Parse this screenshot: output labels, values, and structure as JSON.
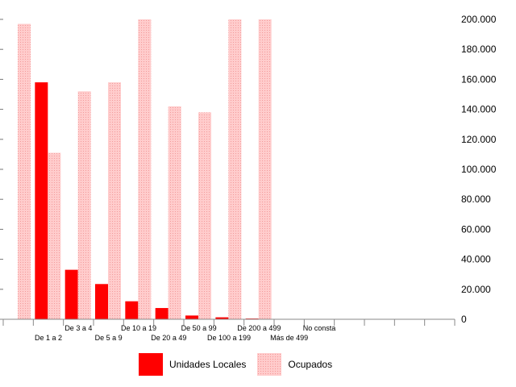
{
  "chart_data": {
    "type": "bar",
    "categories": [
      "",
      "De 1 a 2",
      "De 3 a 4",
      "De 5 a 9",
      "De 10 a 19",
      "De 20 a 49",
      "De 50 a 99",
      "De 100 a 199",
      "De 200 a 499",
      "Más de 499",
      "No consta",
      "",
      "",
      "",
      ""
    ],
    "series": [
      {
        "name": "Unidades Locales",
        "color": "#ff0000",
        "values": [
          null,
          158000,
          33000,
          23500,
          12000,
          7500,
          2500,
          1300,
          500,
          null,
          null,
          null,
          null,
          null,
          null
        ]
      },
      {
        "name": "Ocupados",
        "color": "#ffcccc",
        "values": [
          197000,
          111000,
          152000,
          158000,
          200000,
          142000,
          138000,
          200000,
          200000,
          null,
          null,
          null,
          null,
          null,
          null
        ]
      }
    ],
    "ylim": [
      0,
      200000
    ],
    "yticks": [
      "0",
      "20.000",
      "40.000",
      "60.000",
      "80.000",
      "100.000",
      "120.000",
      "140.000",
      "160.000",
      "180.000",
      "200.000"
    ],
    "legend": {
      "position": "bottom",
      "units_label": "Unidades Locales",
      "occupied_label": "Ocupados"
    }
  }
}
